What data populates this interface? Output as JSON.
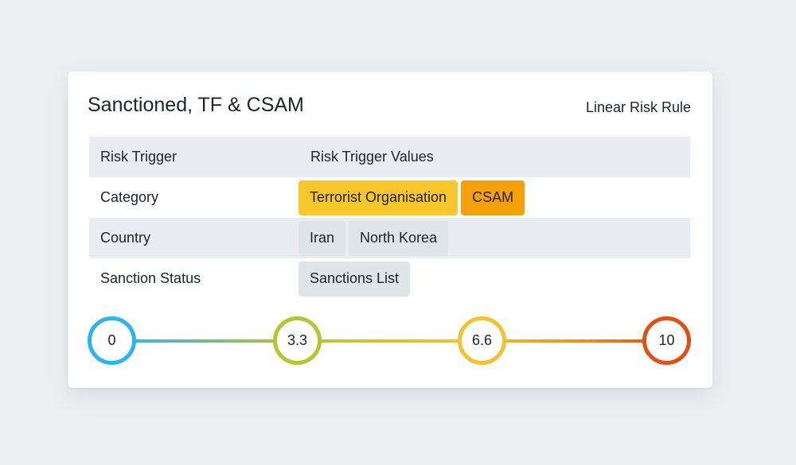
{
  "card": {
    "title": "Sanctioned, TF & CSAM",
    "rule_type": "Linear Risk Rule"
  },
  "table": {
    "header": {
      "trigger": "Risk Trigger",
      "values": "Risk Trigger Values"
    },
    "rows": [
      {
        "label": "Category",
        "values": [
          {
            "text": "Terrorist Organisation",
            "color": "#f7c72d"
          },
          {
            "text": "CSAM",
            "color": "#f5a00a"
          }
        ]
      },
      {
        "label": "Country",
        "values": [
          {
            "text": "Iran",
            "color": "#dfe4e9"
          },
          {
            "text": "North Korea",
            "color": "#dfe4e9"
          }
        ]
      },
      {
        "label": "Sanction Status",
        "values": [
          {
            "text": "Sanctions List",
            "color": "#dfe4e9"
          }
        ]
      }
    ]
  },
  "scale": {
    "points": [
      {
        "label": "0",
        "color": "#2bb4ef"
      },
      {
        "label": "3.3",
        "color": "#b5c531"
      },
      {
        "label": "6.6",
        "color": "#f5c12d"
      },
      {
        "label": "10",
        "color": "#e05013"
      }
    ]
  }
}
